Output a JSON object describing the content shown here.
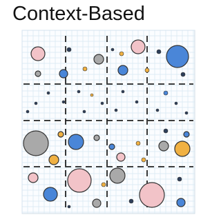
{
  "title": "Context-Based"
}
